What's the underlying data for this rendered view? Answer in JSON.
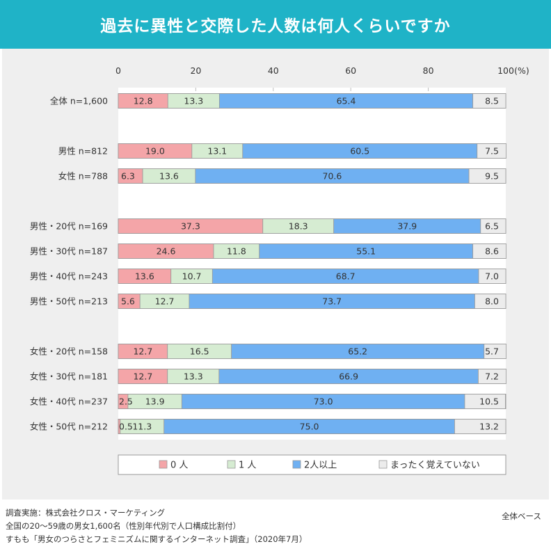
{
  "title": "過去に異性と交際した人数は何人くらいですか",
  "chart_data": {
    "type": "bar",
    "orientation": "horizontal",
    "stacked": true,
    "xlim": [
      0,
      100
    ],
    "xticks": [
      "0",
      "20",
      "40",
      "60",
      "80",
      "100"
    ],
    "unit": "(%)",
    "categories": [
      "全体 n=1,600",
      "",
      "男性 n=812",
      "女性 n=788",
      "",
      "男性・20代 n=169",
      "男性・30代 n=187",
      "男性・40代 n=243",
      "男性・50代 n=213",
      "",
      "女性・20代 n=158",
      "女性・30代 n=181",
      "女性・40代 n=237",
      "女性・50代 n=212"
    ],
    "series": [
      {
        "name": "0 人",
        "color": "#f4a5a8",
        "values": [
          12.8,
          null,
          19.0,
          6.3,
          null,
          37.3,
          24.6,
          13.6,
          5.6,
          null,
          12.7,
          12.7,
          2.5,
          0.5
        ],
        "labels": [
          "12.8",
          "",
          "19.0",
          "6.3",
          "",
          "37.3",
          "24.6",
          "13.6",
          "5.6",
          "",
          "12.7",
          "12.7",
          "2.5",
          "0.5"
        ]
      },
      {
        "name": "1 人",
        "color": "#d6ecd2",
        "values": [
          13.3,
          null,
          13.1,
          13.6,
          null,
          18.3,
          11.8,
          10.7,
          12.7,
          null,
          16.5,
          13.3,
          13.9,
          11.3
        ],
        "labels": [
          "13.3",
          "",
          "13.1",
          "13.6",
          "",
          "18.3",
          "11.8",
          "10.7",
          "12.7",
          "",
          "16.5",
          "13.3",
          "13.9",
          "11.3"
        ]
      },
      {
        "name": "2人以上",
        "color": "#6fb0f2",
        "values": [
          65.4,
          null,
          60.5,
          70.6,
          null,
          37.9,
          55.1,
          68.7,
          73.7,
          null,
          65.2,
          66.9,
          73.0,
          75.0
        ],
        "labels": [
          "65.4",
          "",
          "60.5",
          "70.6",
          "",
          "37.9",
          "55.1",
          "68.7",
          "73.7",
          "",
          "65.2",
          "66.9",
          "73.0",
          "75.0"
        ]
      },
      {
        "name": "まったく覚えていない",
        "color": "#ececec",
        "values": [
          8.5,
          null,
          7.5,
          9.5,
          null,
          6.5,
          8.6,
          7.0,
          8.0,
          null,
          5.7,
          7.2,
          10.5,
          13.2
        ],
        "labels": [
          "8.5",
          "",
          "7.5",
          "9.5",
          "",
          "6.5",
          "8.6",
          "7.0",
          "8.0",
          "",
          "5.7",
          "7.2",
          "10.5",
          "13.2"
        ]
      }
    ],
    "legend_position": "bottom"
  },
  "footer": {
    "line1": "調査実施：株式会社クロス・マーケティング",
    "line2": "全国の20～59歳の男女1,600名（性別年代別で人口構成比割付）",
    "line3": "すもも「男女のつらさとフェミニズムに関するインターネット調査」（2020年7月）",
    "base_note": "全体ベース"
  }
}
